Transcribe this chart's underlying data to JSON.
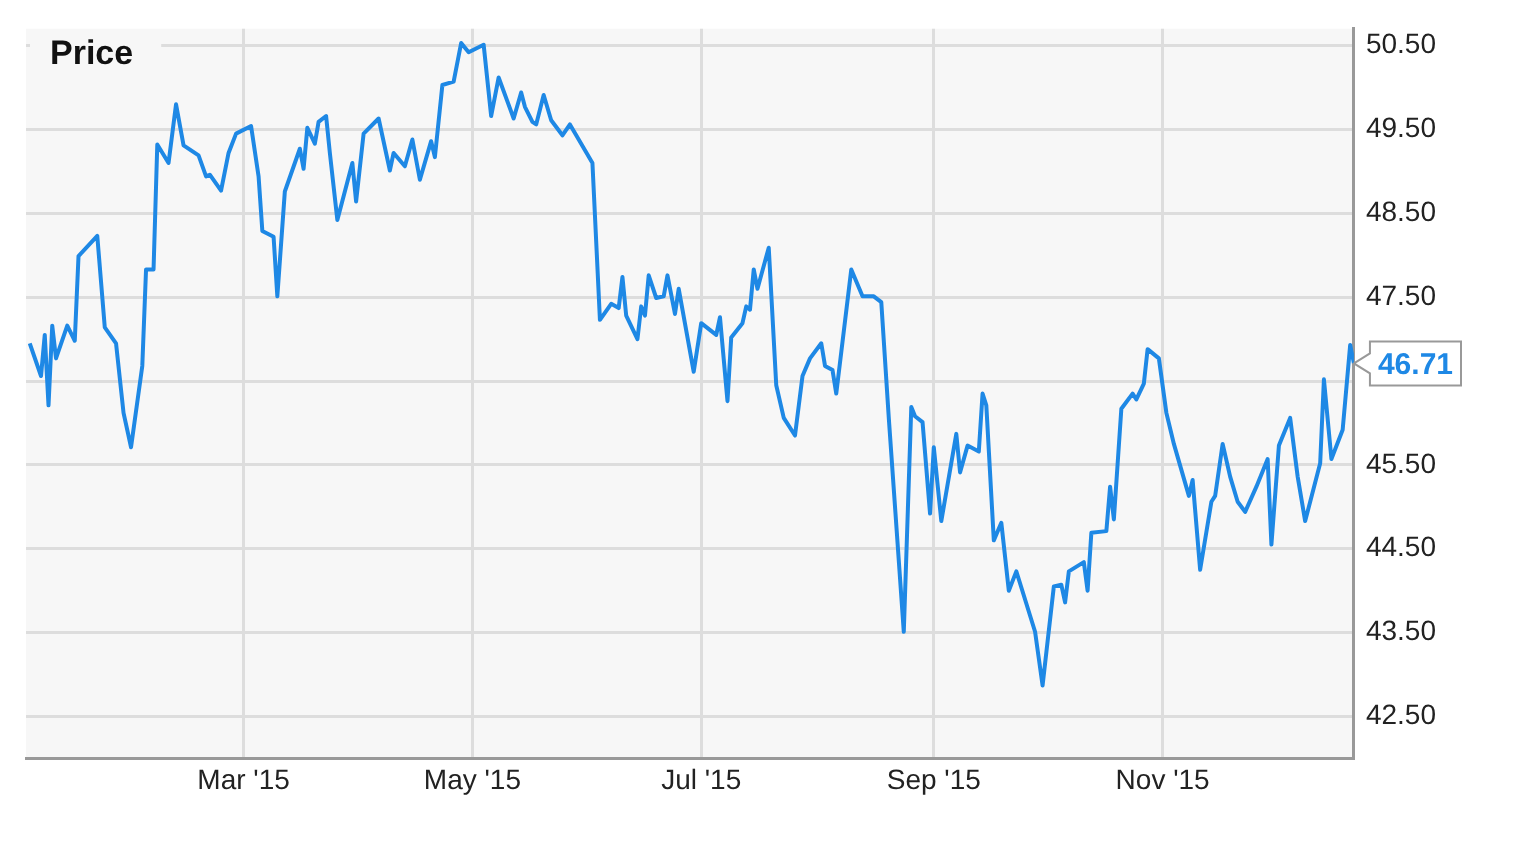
{
  "chart_data": {
    "type": "line",
    "title": "Price",
    "x": [
      "2015-01-03",
      "2015-01-06",
      "2015-01-07",
      "2015-01-08",
      "2015-01-09",
      "2015-01-10",
      "2015-01-13",
      "2015-01-15",
      "2015-01-16",
      "2015-01-21",
      "2015-01-23",
      "2015-01-26",
      "2015-01-28",
      "2015-01-30",
      "2015-02-02",
      "2015-02-03",
      "2015-02-05",
      "2015-02-06",
      "2015-02-09",
      "2015-02-11",
      "2015-02-13",
      "2015-02-17",
      "2015-02-19",
      "2015-02-20",
      "2015-02-23",
      "2015-02-25",
      "2015-02-27",
      "2015-03-03",
      "2015-03-05",
      "2015-03-06",
      "2015-03-09",
      "2015-03-10",
      "2015-03-12",
      "2015-03-16",
      "2015-03-17",
      "2015-03-18",
      "2015-03-20",
      "2015-03-21",
      "2015-03-23",
      "2015-03-24",
      "2015-03-26",
      "2015-03-30",
      "2015-03-31",
      "2015-04-02",
      "2015-04-06",
      "2015-04-09",
      "2015-04-10",
      "2015-04-13",
      "2015-04-15",
      "2015-04-17",
      "2015-04-20",
      "2015-04-21",
      "2015-04-23",
      "2015-04-26",
      "2015-04-28",
      "2015-04-30",
      "2015-05-04",
      "2015-05-06",
      "2015-05-08",
      "2015-05-12",
      "2015-05-14",
      "2015-05-15",
      "2015-05-17",
      "2015-05-18",
      "2015-05-20",
      "2015-05-22",
      "2015-05-25",
      "2015-05-27",
      "2015-06-02",
      "2015-06-04",
      "2015-06-07",
      "2015-06-09",
      "2015-06-10",
      "2015-06-11",
      "2015-06-14",
      "2015-06-15",
      "2015-06-16",
      "2015-06-17",
      "2015-06-19",
      "2015-06-21",
      "2015-06-22",
      "2015-06-24",
      "2015-06-25",
      "2015-06-29",
      "2015-07-01",
      "2015-07-05",
      "2015-07-06",
      "2015-07-08",
      "2015-07-09",
      "2015-07-12",
      "2015-07-13",
      "2015-07-14",
      "2015-07-15",
      "2015-07-16",
      "2015-07-19",
      "2015-07-21",
      "2015-07-23",
      "2015-07-26",
      "2015-07-28",
      "2015-07-30",
      "2015-08-02",
      "2015-08-03",
      "2015-08-05",
      "2015-08-06",
      "2015-08-10",
      "2015-08-13",
      "2015-08-16",
      "2015-08-18",
      "2015-08-20",
      "2015-08-24",
      "2015-08-26",
      "2015-08-27",
      "2015-08-29",
      "2015-08-31",
      "2015-09-01",
      "2015-09-03",
      "2015-09-07",
      "2015-09-08",
      "2015-09-10",
      "2015-09-13",
      "2015-09-14",
      "2015-09-15",
      "2015-09-17",
      "2015-09-19",
      "2015-09-21",
      "2015-09-23",
      "2015-09-28",
      "2015-09-30",
      "2015-10-03",
      "2015-10-05",
      "2015-10-06",
      "2015-10-07",
      "2015-10-11",
      "2015-10-12",
      "2015-10-13",
      "2015-10-17",
      "2015-10-18",
      "2015-10-19",
      "2015-10-21",
      "2015-10-24",
      "2015-10-25",
      "2015-10-27",
      "2015-10-28",
      "2015-10-31",
      "2015-11-02",
      "2015-11-04",
      "2015-11-08",
      "2015-11-09",
      "2015-11-11",
      "2015-11-14",
      "2015-11-15",
      "2015-11-17",
      "2015-11-19",
      "2015-11-21",
      "2015-11-23",
      "2015-11-26",
      "2015-11-29",
      "2015-11-30",
      "2015-12-02",
      "2015-12-05",
      "2015-12-07",
      "2015-12-09",
      "2015-12-13",
      "2015-12-14",
      "2015-12-16",
      "2015-12-19",
      "2015-12-21",
      "2015-12-22"
    ],
    "series": [
      {
        "color": "#1e88e5",
        "values": [
          46.95,
          46.56,
          47.05,
          46.21,
          47.16,
          46.77,
          47.16,
          46.98,
          47.99,
          48.23,
          47.14,
          46.95,
          46.12,
          45.71,
          46.68,
          47.83,
          47.83,
          49.32,
          49.1,
          49.8,
          49.31,
          49.19,
          48.94,
          48.96,
          48.77,
          49.22,
          49.45,
          49.54,
          48.94,
          48.29,
          48.22,
          47.51,
          48.76,
          49.27,
          49.03,
          49.52,
          49.33,
          49.59,
          49.66,
          49.22,
          48.42,
          49.1,
          48.64,
          49.45,
          49.63,
          49.01,
          49.22,
          49.06,
          49.38,
          48.9,
          49.36,
          49.17,
          50.03,
          50.07,
          50.53,
          50.42,
          50.51,
          49.66,
          50.12,
          49.63,
          49.94,
          49.77,
          49.59,
          49.56,
          49.91,
          49.61,
          49.43,
          49.56,
          49.1,
          47.23,
          47.42,
          47.37,
          47.74,
          47.28,
          47.0,
          47.39,
          47.28,
          47.76,
          47.49,
          47.51,
          47.76,
          47.3,
          47.6,
          46.61,
          47.19,
          47.05,
          47.26,
          46.26,
          47.02,
          47.19,
          47.39,
          47.35,
          47.83,
          47.6,
          48.09,
          46.45,
          46.06,
          45.85,
          46.56,
          46.77,
          46.95,
          46.68,
          46.63,
          46.35,
          47.83,
          47.51,
          47.51,
          47.44,
          46.06,
          43.51,
          46.19,
          46.08,
          46.01,
          44.92,
          45.71,
          44.83,
          45.87,
          45.41,
          45.73,
          45.66,
          46.35,
          46.21,
          44.6,
          44.81,
          44.0,
          44.23,
          43.51,
          42.87,
          44.05,
          44.07,
          43.86,
          44.23,
          44.34,
          44.0,
          44.69,
          44.71,
          45.24,
          44.85,
          46.17,
          46.35,
          46.28,
          46.47,
          46.88,
          46.77,
          46.12,
          45.75,
          45.13,
          45.32,
          44.25,
          45.06,
          45.13,
          45.75,
          45.36,
          45.06,
          44.94,
          45.24,
          45.57,
          44.55,
          45.73,
          46.06,
          45.36,
          44.83,
          45.52,
          46.52,
          45.57,
          45.92,
          46.93,
          46.71
        ]
      }
    ],
    "xlim": [
      "2015-01-02",
      "2015-12-22"
    ],
    "xticks": [
      {
        "value": "2015-03-01",
        "label": "Mar '15"
      },
      {
        "value": "2015-05-01",
        "label": "May '15"
      },
      {
        "value": "2015-07-01",
        "label": "Jul '15"
      },
      {
        "value": "2015-09-01",
        "label": "Sep '15"
      },
      {
        "value": "2015-11-01",
        "label": "Nov '15"
      }
    ],
    "ylim": [
      42,
      50.7
    ],
    "yticks": [
      {
        "value": 42.5,
        "label": "42.50"
      },
      {
        "value": 43.5,
        "label": "43.50"
      },
      {
        "value": 44.5,
        "label": "44.50"
      },
      {
        "value": 45.5,
        "label": "45.50"
      },
      {
        "value": 46.5,
        "label": null
      },
      {
        "value": 47.5,
        "label": "47.50"
      },
      {
        "value": 48.5,
        "label": "48.50"
      },
      {
        "value": 49.5,
        "label": "49.50"
      },
      {
        "value": 50.5,
        "label": "50.50"
      }
    ],
    "grid": true,
    "marker": "none",
    "line_style": "solid",
    "annotations": [
      {
        "text": "46.71",
        "x": "2015-12-22",
        "y": 46.71
      }
    ]
  }
}
